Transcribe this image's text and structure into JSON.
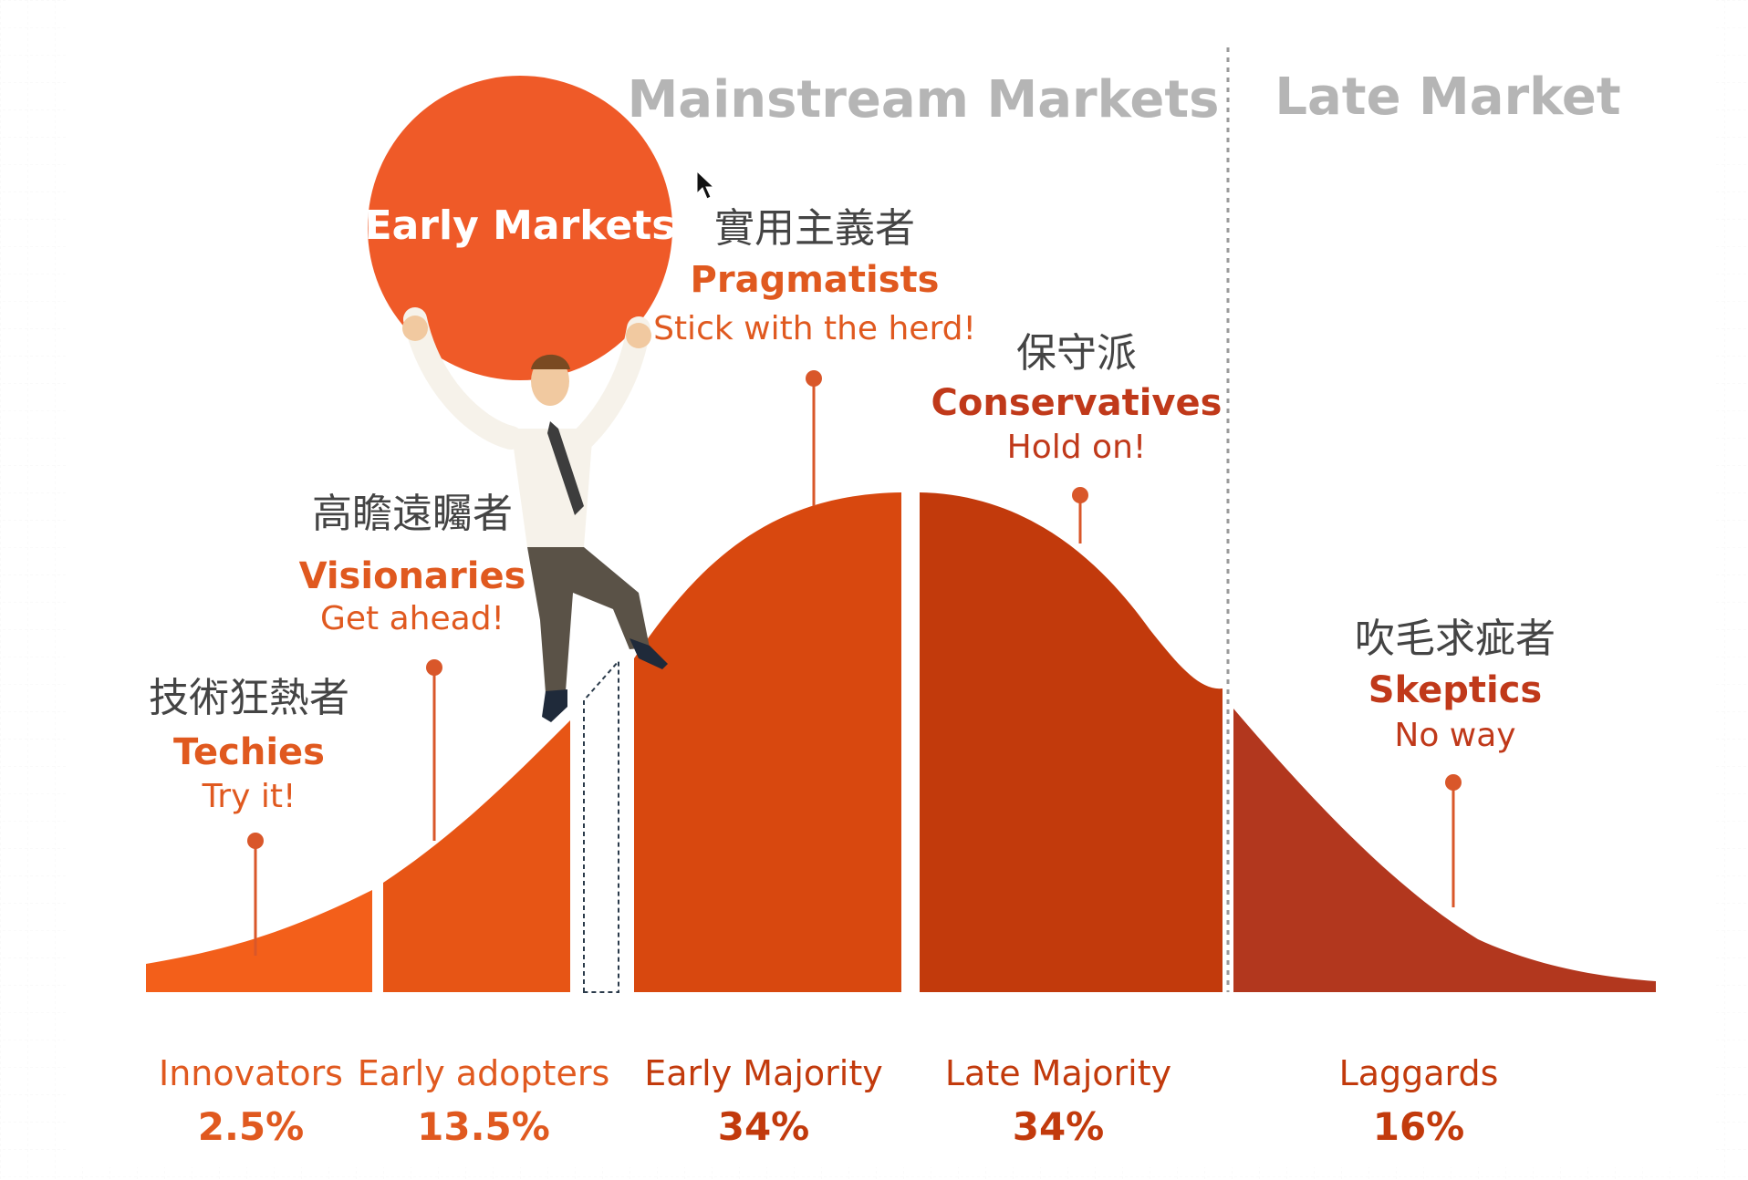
{
  "markets": {
    "early": "Early Markets",
    "mainstream": "Mainstream Markets",
    "late": "Late Market"
  },
  "colors": {
    "innovators": "#F35F1A",
    "early_adopters": "#E75515",
    "early_majority": "#D8480F",
    "late_majority": "#C23A0C",
    "laggards": "#B2371E",
    "circle": "#EF5A28",
    "accent_text": "#E0591F",
    "red_text": "#C0391A",
    "heading_grey": "#B5B5B5",
    "cjk_text": "#444444",
    "stem": "#D9572A"
  },
  "segments": [
    {
      "name": "Innovators",
      "percent": "2.5%",
      "cjk": "技術狂熱者",
      "title": "Techies",
      "motto": "Try it!"
    },
    {
      "name": "Early adopters",
      "percent": "13.5%",
      "cjk": "高瞻遠矚者",
      "title": "Visionaries",
      "motto": "Get ahead!"
    },
    {
      "name": "Early Majority",
      "percent": "34%",
      "cjk": "實用主義者",
      "title": "Pragmatists",
      "motto": "Stick  with the herd!"
    },
    {
      "name": "Late Majority",
      "percent": "34%",
      "cjk": "保守派",
      "title": "Conservatives",
      "motto": "Hold on!"
    },
    {
      "name": "Laggards",
      "percent": "16%",
      "cjk": "吹毛求疵者",
      "title": "Skeptics",
      "motto": "No way"
    }
  ],
  "icons": {
    "person": "man-holding-ball-icon",
    "cursor": "mouse-cursor-icon"
  }
}
